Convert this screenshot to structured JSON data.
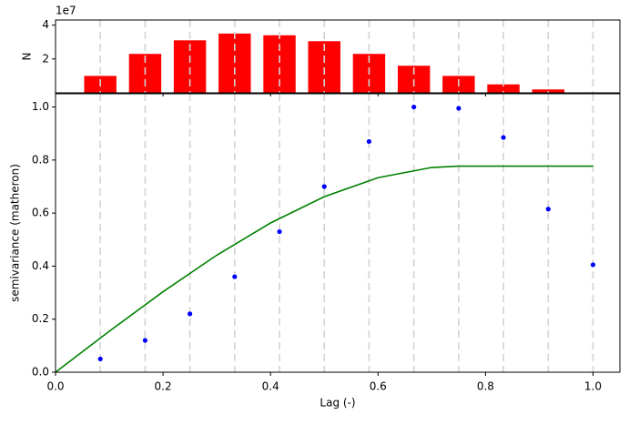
{
  "chart_data": [
    {
      "type": "bar",
      "ylabel": "N",
      "offset_label": "1e7",
      "x": [
        0.0833,
        0.1667,
        0.25,
        0.3333,
        0.4167,
        0.5,
        0.5833,
        0.6667,
        0.75,
        0.8333,
        0.9167,
        1.0
      ],
      "values": [
        10000000,
        23000000,
        31000000,
        35000000,
        34000000,
        30500000,
        23000000,
        16000000,
        10000000,
        5000000,
        2000000,
        0
      ],
      "color": "#ff0000",
      "xlim": [
        0,
        1.05
      ],
      "ylim": [
        0,
        43000000
      ],
      "yticks": [
        {
          "value": 20000000,
          "label": "2"
        },
        {
          "value": 40000000,
          "label": "4"
        }
      ],
      "xticks": [
        0,
        0.2,
        0.4,
        0.6,
        0.8,
        1.0
      ],
      "bin_lines": true
    },
    {
      "type": "variogram",
      "xlabel": "Lag (-)",
      "ylabel": "semivariance (matheron)",
      "xlim": [
        0,
        1.05
      ],
      "ylim": [
        0,
        1.05
      ],
      "xticks": [
        {
          "value": 0,
          "label": "0.0"
        },
        0.2,
        0.4,
        0.6,
        0.8,
        {
          "value": 1.0,
          "label": "1.0"
        }
      ],
      "yticks": [
        {
          "value": 0,
          "label": "0.0"
        },
        0.2,
        0.4,
        0.6,
        0.8,
        {
          "value": 1.0,
          "label": "1.0"
        }
      ],
      "bin_lines": true,
      "series": [
        {
          "style": "markers",
          "color": "#0000ff",
          "x": [
            0.0833,
            0.1667,
            0.25,
            0.3333,
            0.4167,
            0.5,
            0.5833,
            0.6667,
            0.75,
            0.8333,
            0.9167,
            1.0
          ],
          "values": [
            0.05,
            0.12,
            0.22,
            0.36,
            0.53,
            0.7,
            0.87,
            1.0,
            0.995,
            0.885,
            0.615,
            0.405
          ]
        },
        {
          "style": "line",
          "color": "#008000",
          "x": [
            0,
            0.1,
            0.2,
            0.3,
            0.4,
            0.5,
            0.6,
            0.7,
            0.75,
            0.8,
            0.9,
            1.0
          ],
          "values": [
            0,
            0.1545,
            0.3034,
            0.4413,
            0.5627,
            0.6619,
            0.7335,
            0.772,
            0.777,
            0.777,
            0.777,
            0.777
          ]
        }
      ]
    }
  ]
}
